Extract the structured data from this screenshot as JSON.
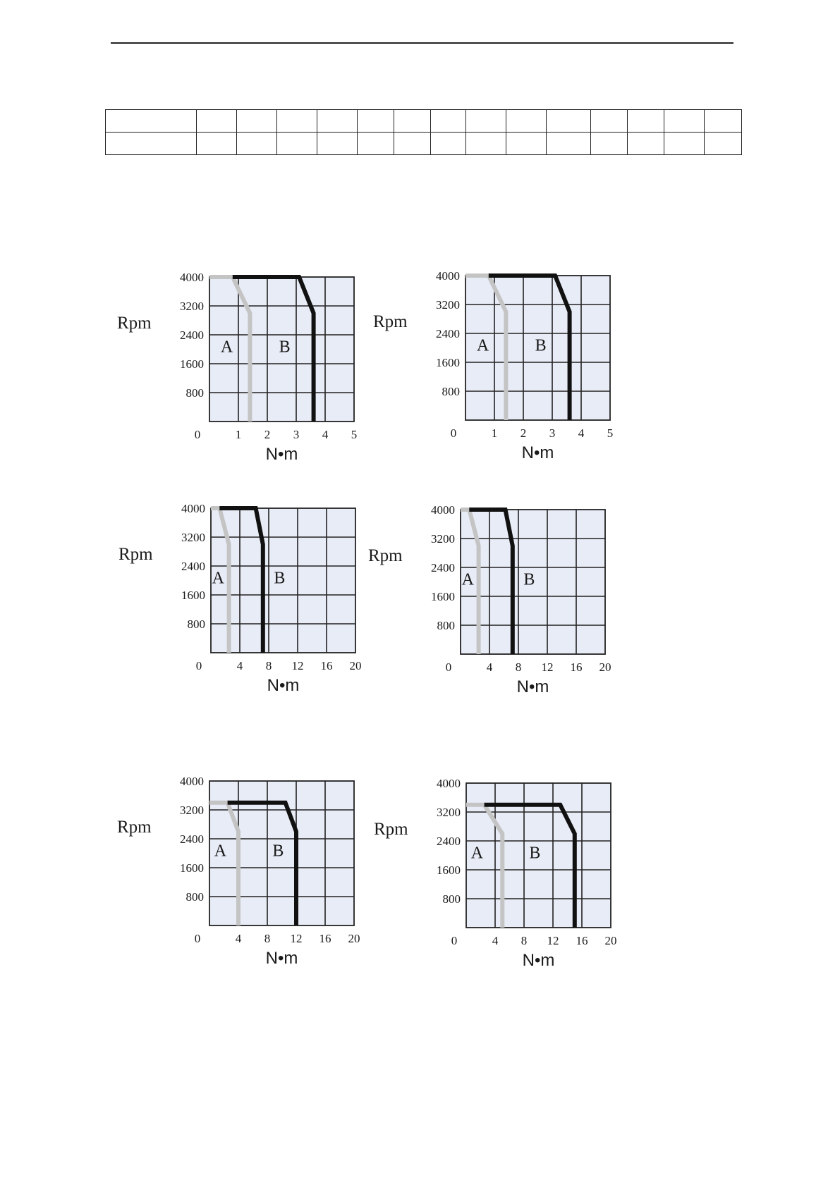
{
  "colors": {
    "plot_bg": "#e8ecf6",
    "grid": "#222222",
    "curve_A": "#c4c4c4",
    "curve_B": "#111111"
  },
  "table": {
    "columns": [
      122,
      54,
      54,
      54,
      54,
      49,
      49,
      47,
      54,
      54,
      60,
      49,
      49,
      54,
      50
    ],
    "rows": [
      [
        "",
        "",
        "",
        "",
        "",
        "",
        "",
        "",
        "",
        "",
        "",
        "",
        "",
        "",
        ""
      ],
      [
        "",
        "",
        "",
        "",
        "",
        "",
        "",
        "",
        "",
        "",
        "",
        "",
        "",
        "",
        ""
      ]
    ]
  },
  "chart_data": [
    {
      "type": "line",
      "ylabel": "Rpm",
      "xlabel": "N•m",
      "xlim": [
        0,
        5
      ],
      "ylim": [
        0,
        4000
      ],
      "xticks": [
        "0",
        "1",
        "2",
        "3",
        "4",
        "5"
      ],
      "yticks": [
        "800",
        "1600",
        "2400",
        "3200",
        "4000"
      ],
      "region_labels": [
        {
          "text": "A",
          "x": 0.6,
          "y": 2100
        },
        {
          "text": "B",
          "x": 2.6,
          "y": 2100
        }
      ],
      "series": [
        {
          "key": "A",
          "x": [
            0,
            0.8,
            1.4,
            1.4
          ],
          "y": [
            4000,
            4000,
            3000,
            0
          ]
        },
        {
          "key": "B",
          "x": [
            0.8,
            3.1,
            3.6,
            3.6
          ],
          "y": [
            4000,
            4000,
            3000,
            0
          ]
        }
      ]
    },
    {
      "type": "line",
      "ylabel": "Rpm",
      "xlabel": "N•m",
      "xlim": [
        0,
        5
      ],
      "ylim": [
        0,
        4000
      ],
      "xticks": [
        "0",
        "1",
        "2",
        "3",
        "4",
        "5"
      ],
      "yticks": [
        "800",
        "1600",
        "2400",
        "3200",
        "4000"
      ],
      "region_labels": [
        {
          "text": "A",
          "x": 0.6,
          "y": 2100
        },
        {
          "text": "B",
          "x": 2.6,
          "y": 2100
        }
      ],
      "series": [
        {
          "key": "A",
          "x": [
            0,
            0.8,
            1.4,
            1.4
          ],
          "y": [
            4000,
            4000,
            3000,
            0
          ]
        },
        {
          "key": "B",
          "x": [
            0.8,
            3.1,
            3.6,
            3.6
          ],
          "y": [
            4000,
            4000,
            3000,
            0
          ]
        }
      ]
    },
    {
      "type": "line",
      "ylabel": "Rpm",
      "xlabel": "N•m",
      "xlim": [
        0,
        20
      ],
      "ylim": [
        0,
        4000
      ],
      "xticks": [
        "0",
        "4",
        "8",
        "12",
        "16",
        "20"
      ],
      "yticks": [
        "800",
        "1600",
        "2400",
        "3200",
        "4000"
      ],
      "region_labels": [
        {
          "text": "A",
          "x": 1,
          "y": 2100
        },
        {
          "text": "B",
          "x": 9.5,
          "y": 2100
        }
      ],
      "series": [
        {
          "key": "A",
          "x": [
            0,
            1.2,
            2.5,
            2.5
          ],
          "y": [
            4000,
            4000,
            3000,
            0
          ]
        },
        {
          "key": "B",
          "x": [
            1.2,
            6.2,
            7.2,
            7.2
          ],
          "y": [
            4000,
            4000,
            3000,
            0
          ]
        }
      ]
    },
    {
      "type": "line",
      "ylabel": "Rpm",
      "xlabel": "N•m",
      "xlim": [
        0,
        20
      ],
      "ylim": [
        0,
        4000
      ],
      "xticks": [
        "0",
        "4",
        "8",
        "12",
        "16",
        "20"
      ],
      "yticks": [
        "800",
        "1600",
        "2400",
        "3200",
        "4000"
      ],
      "region_labels": [
        {
          "text": "A",
          "x": 1,
          "y": 2100
        },
        {
          "text": "B",
          "x": 9.5,
          "y": 2100
        }
      ],
      "series": [
        {
          "key": "A",
          "x": [
            0,
            1.2,
            2.5,
            2.5
          ],
          "y": [
            4000,
            4000,
            3000,
            0
          ]
        },
        {
          "key": "B",
          "x": [
            1.2,
            6.2,
            7.2,
            7.2
          ],
          "y": [
            4000,
            4000,
            3000,
            0
          ]
        }
      ]
    },
    {
      "type": "line",
      "ylabel": "Rpm",
      "xlabel": "N•m",
      "xlim": [
        0,
        20
      ],
      "ylim": [
        0,
        4000
      ],
      "xticks": [
        "0",
        "4",
        "8",
        "12",
        "16",
        "20"
      ],
      "yticks": [
        "800",
        "1600",
        "2400",
        "3200",
        "4000"
      ],
      "region_labels": [
        {
          "text": "A",
          "x": 1.5,
          "y": 2100
        },
        {
          "text": "B",
          "x": 9.5,
          "y": 2100
        }
      ],
      "series": [
        {
          "key": "A",
          "x": [
            0,
            2.5,
            4,
            4
          ],
          "y": [
            3400,
            3400,
            2600,
            0
          ]
        },
        {
          "key": "B",
          "x": [
            2.5,
            10.5,
            12,
            12
          ],
          "y": [
            3400,
            3400,
            2600,
            0
          ]
        }
      ]
    },
    {
      "type": "line",
      "ylabel": "Rpm",
      "xlabel": "N•m",
      "xlim": [
        0,
        20
      ],
      "ylim": [
        0,
        4000
      ],
      "xticks": [
        "0",
        "4",
        "8",
        "12",
        "16",
        "20"
      ],
      "yticks": [
        "800",
        "1600",
        "2400",
        "3200",
        "4000"
      ],
      "region_labels": [
        {
          "text": "A",
          "x": 1.5,
          "y": 2100
        },
        {
          "text": "B",
          "x": 9.5,
          "y": 2100
        }
      ],
      "series": [
        {
          "key": "A",
          "x": [
            0,
            2.5,
            5,
            5
          ],
          "y": [
            3400,
            3400,
            2600,
            0
          ]
        },
        {
          "key": "B",
          "x": [
            2.5,
            13,
            15,
            15
          ],
          "y": [
            3400,
            3400,
            2600,
            0
          ]
        }
      ]
    }
  ]
}
